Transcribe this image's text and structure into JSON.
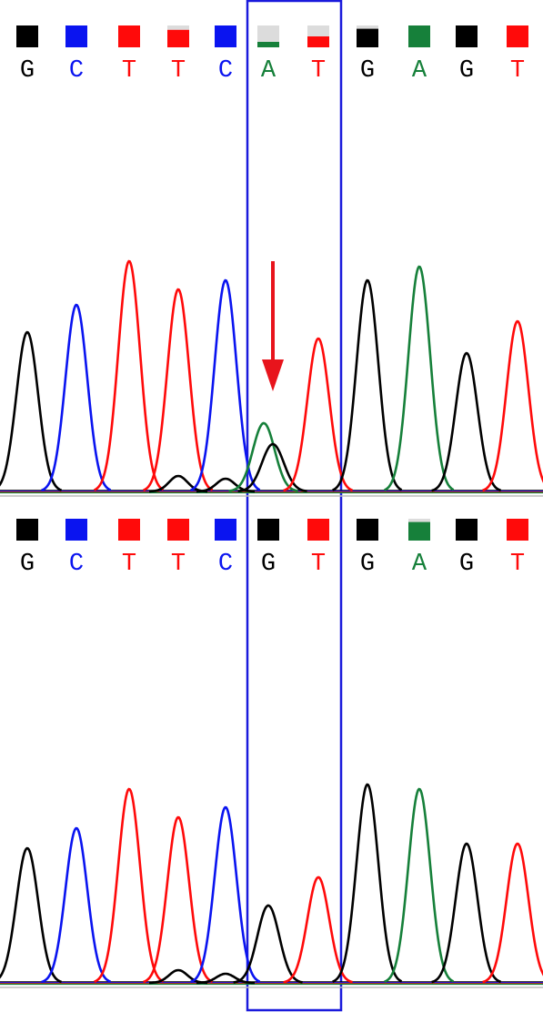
{
  "colors": {
    "A": "#16803a",
    "C": "#0a14f0",
    "G": "#000000",
    "T": "#ff0a0a"
  },
  "panels": [
    {
      "bases": [
        {
          "letter": "G",
          "quality": 1,
          "peaks": [
            {
              "base": "G",
              "height": 175
            }
          ]
        },
        {
          "letter": "C",
          "quality": 1,
          "peaks": [
            {
              "base": "C",
              "height": 205
            }
          ]
        },
        {
          "letter": "T",
          "quality": 1,
          "peaks": [
            {
              "base": "T",
              "height": 253
            }
          ]
        },
        {
          "letter": "T",
          "quality": 0.8,
          "peaks": [
            {
              "base": "T",
              "height": 222
            },
            {
              "base": "G",
              "height": 17
            }
          ]
        },
        {
          "letter": "C",
          "quality": 1,
          "peaks": [
            {
              "base": "C",
              "height": 232
            },
            {
              "base": "G",
              "height": 14
            }
          ]
        },
        {
          "letter": "A",
          "quality": 0.25,
          "peaks": [
            {
              "base": "A",
              "height": 75
            },
            {
              "base": "G",
              "height": 52
            }
          ]
        },
        {
          "letter": "T",
          "quality": 0.5,
          "peaks": [
            {
              "base": "T",
              "height": 168
            }
          ]
        },
        {
          "letter": "G",
          "quality": 0.85,
          "peaks": [
            {
              "base": "G",
              "height": 232
            }
          ]
        },
        {
          "letter": "A",
          "quality": 1,
          "peaks": [
            {
              "base": "A",
              "height": 247
            }
          ]
        },
        {
          "letter": "G",
          "quality": 1,
          "peaks": [
            {
              "base": "G",
              "height": 152
            }
          ]
        },
        {
          "letter": "T",
          "quality": 1,
          "peaks": [
            {
              "base": "T",
              "height": 187
            }
          ]
        }
      ]
    },
    {
      "bases": [
        {
          "letter": "G",
          "quality": 1,
          "peaks": [
            {
              "base": "G",
              "height": 148
            }
          ]
        },
        {
          "letter": "C",
          "quality": 1,
          "peaks": [
            {
              "base": "C",
              "height": 170
            }
          ]
        },
        {
          "letter": "T",
          "quality": 1,
          "peaks": [
            {
              "base": "T",
              "height": 213
            }
          ]
        },
        {
          "letter": "T",
          "quality": 1,
          "peaks": [
            {
              "base": "T",
              "height": 182
            },
            {
              "base": "G",
              "height": 14
            }
          ]
        },
        {
          "letter": "C",
          "quality": 1,
          "peaks": [
            {
              "base": "C",
              "height": 193
            },
            {
              "base": "G",
              "height": 10
            }
          ]
        },
        {
          "letter": "G",
          "quality": 1,
          "peaks": [
            {
              "base": "G",
              "height": 85
            }
          ]
        },
        {
          "letter": "T",
          "quality": 1,
          "peaks": [
            {
              "base": "T",
              "height": 116
            }
          ]
        },
        {
          "letter": "G",
          "quality": 1,
          "peaks": [
            {
              "base": "G",
              "height": 218
            }
          ]
        },
        {
          "letter": "A",
          "quality": 0.85,
          "peaks": [
            {
              "base": "A",
              "height": 213
            }
          ]
        },
        {
          "letter": "G",
          "quality": 1,
          "peaks": [
            {
              "base": "G",
              "height": 153
            }
          ]
        },
        {
          "letter": "T",
          "quality": 1,
          "peaks": [
            {
              "base": "T",
              "height": 153
            }
          ]
        }
      ]
    }
  ]
}
